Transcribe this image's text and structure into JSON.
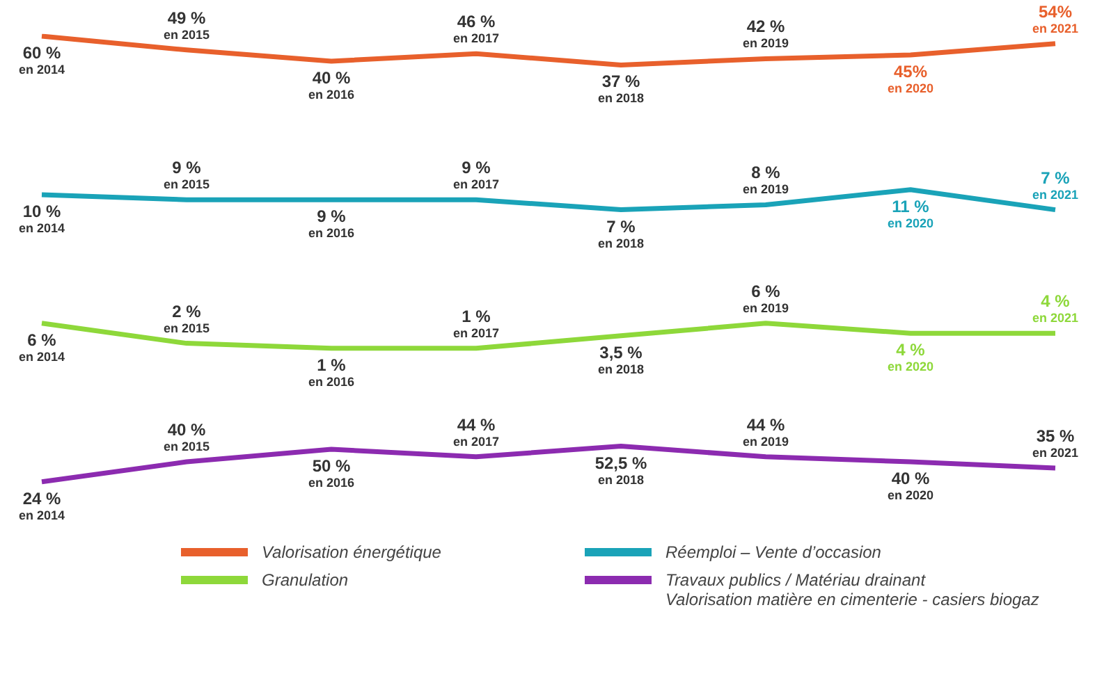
{
  "chart_data": [
    {
      "type": "line",
      "categories": [
        null,
        null,
        null,
        null,
        null,
        null,
        null,
        null
      ],
      "series": [
        {
          "name": "Valorisation énergétique",
          "color": "#e8602c",
          "values": [
            60,
            49,
            40,
            46,
            37,
            42,
            45,
            54
          ],
          "value_labels": [
            "60 %\nen 2014",
            "49 %\nen 2015",
            "40 %\nen 2016",
            "46 %\nen 2017",
            "37 %\nen 2018",
            "42 %\nen 2019",
            "45%\nen 2020",
            "54%\nen 2021"
          ]
        }
      ],
      "tick_labels": false,
      "grid": false,
      "legend": "bottom",
      "marker": "none",
      "line_style": "solid"
    },
    {
      "type": "line",
      "categories": [
        null,
        null,
        null,
        null,
        null,
        null,
        null,
        null
      ],
      "series": [
        {
          "name": "Réemploi – Vente d’occasion",
          "color": "#1aa3b8",
          "values": [
            10,
            9,
            9,
            9,
            7,
            8,
            11,
            7
          ],
          "value_labels": [
            "10 %\nen 2014",
            "9 %\nen 2015",
            "9 %\nen 2016",
            "9 %\nen 2017",
            "7 %\nen 2018",
            "8 %\nen 2019",
            "11 %\nen 2020",
            "7 %\nen 2021"
          ]
        }
      ],
      "tick_labels": false,
      "grid": false,
      "legend": "bottom",
      "marker": "none",
      "line_style": "solid"
    },
    {
      "type": "line",
      "categories": [
        null,
        null,
        null,
        null,
        null,
        null,
        null,
        null
      ],
      "series": [
        {
          "name": "Granulation",
          "color": "#8ed83a",
          "values": [
            6,
            2,
            1,
            1,
            3.5,
            6,
            4,
            4
          ],
          "value_labels": [
            "6 %\nen 2014",
            "2 %\nen 2015",
            "1 %\nen 2016",
            "1 %\nen 2017",
            "3,5 %\nen 2018",
            "6 %\nen 2019",
            "4 %\nen 2020",
            "4 %\nen 2021"
          ]
        }
      ],
      "tick_labels": false,
      "grid": false,
      "legend": "bottom",
      "marker": "none",
      "line_style": "solid"
    },
    {
      "type": "line",
      "categories": [
        null,
        null,
        null,
        null,
        null,
        null,
        null,
        null
      ],
      "series": [
        {
          "name": "Travaux publics / Matériau drainant\nValorisation matière en cimenterie - casiers biogaz",
          "color": "#8c2bb0",
          "values": [
            24,
            40,
            50,
            44,
            52.5,
            44,
            40,
            35
          ],
          "value_labels": [
            "24 %\nen 2014",
            "40 %\nen 2015",
            "50 %\nen 2016",
            "44 %\nen 2017",
            "52,5 %\nen 2018",
            "44 %\nen 2019",
            "40 %\nen 2020",
            "35 %\nen 2021"
          ]
        }
      ],
      "tick_labels": false,
      "grid": false,
      "legend": "bottom",
      "marker": "none",
      "line_style": "solid"
    }
  ]
}
